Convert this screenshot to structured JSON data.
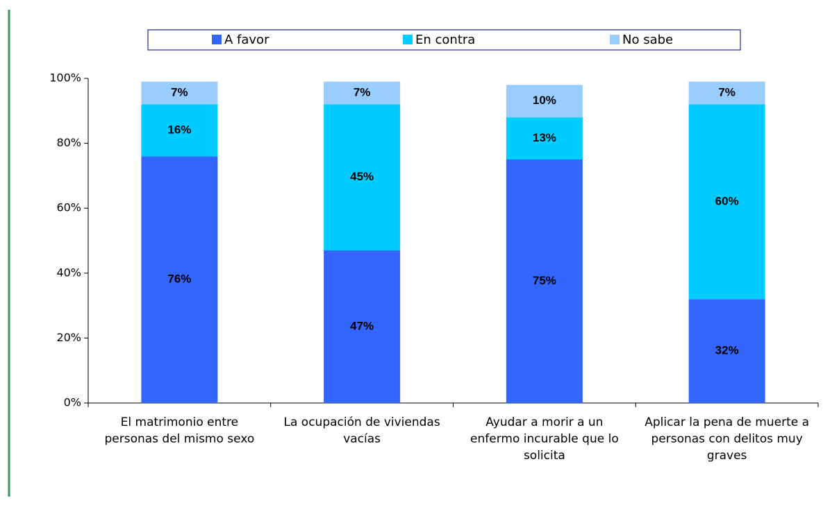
{
  "chart_data": {
    "type": "bar",
    "stacked": true,
    "categories": [
      "El matrimonio entre personas del mismo sexo",
      "La ocupación de viviendas vacías",
      "Ayudar a morir a un enfermo incurable que lo solicita",
      "Aplicar la pena de muerte a personas con delitos muy graves"
    ],
    "series": [
      {
        "name": "A favor",
        "color": "#3366ff",
        "values": [
          76,
          47,
          75,
          32
        ],
        "value_labels": [
          "76%",
          "47%",
          "75%",
          "32%"
        ]
      },
      {
        "name": "En contra",
        "color": "#00ccff",
        "values": [
          16,
          45,
          13,
          60
        ],
        "value_labels": [
          "16%",
          "45%",
          "13%",
          "60%"
        ]
      },
      {
        "name": "No sabe",
        "color": "#99ccff",
        "values": [
          7,
          7,
          10,
          7
        ],
        "value_labels": [
          "7%",
          "7%",
          "10%",
          "7%"
        ]
      }
    ],
    "ylim": [
      0,
      100
    ],
    "yticks": [
      {
        "value": 0,
        "label": "0%"
      },
      {
        "value": 20,
        "label": "20%"
      },
      {
        "value": 40,
        "label": "40%"
      },
      {
        "value": 60,
        "label": "60%"
      },
      {
        "value": 80,
        "label": "80%"
      },
      {
        "value": 100,
        "label": "100%"
      }
    ],
    "legend": "top"
  }
}
